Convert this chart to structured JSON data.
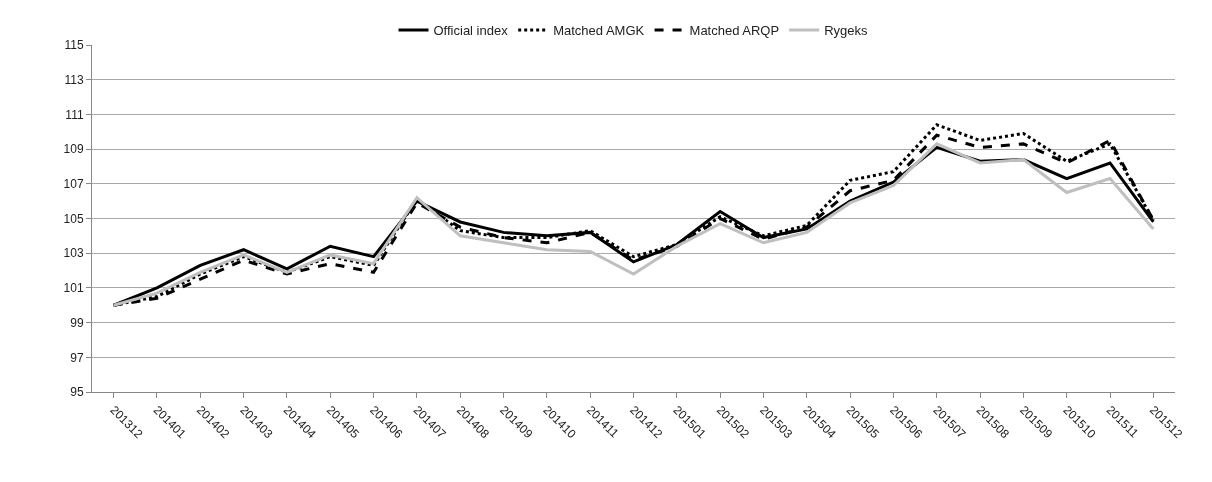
{
  "chart_data": {
    "type": "line",
    "categories": [
      "201312",
      "201401",
      "201402",
      "201403",
      "201404",
      "201405",
      "201406",
      "201407",
      "201408",
      "201409",
      "201410",
      "201411",
      "201412",
      "201501",
      "201502",
      "201503",
      "201504",
      "201505",
      "201506",
      "201507",
      "201508",
      "201509",
      "201510",
      "201511",
      "201512"
    ],
    "series": [
      {
        "name": "Official index",
        "color": "#000000",
        "line_style": "solid",
        "values": [
          100,
          101.0,
          102.3,
          103.2,
          102.1,
          103.4,
          102.8,
          106.0,
          104.8,
          104.2,
          104.0,
          104.2,
          102.5,
          103.5,
          105.4,
          103.9,
          104.4,
          106.0,
          107.1,
          109.1,
          108.3,
          108.4,
          107.3,
          108.2,
          104.8
        ]
      },
      {
        "name": "Matched AMGK",
        "color": "#000000",
        "line_style": "dotted",
        "values": [
          100,
          100.5,
          101.8,
          102.8,
          101.9,
          102.8,
          102.3,
          106.1,
          104.3,
          103.9,
          103.9,
          104.3,
          102.8,
          103.5,
          105.1,
          104.0,
          104.6,
          107.2,
          107.7,
          110.4,
          109.5,
          109.9,
          108.3,
          109.3,
          104.9
        ]
      },
      {
        "name": "Matched ARQP",
        "color": "#000000",
        "line_style": "dashed",
        "values": [
          100,
          100.4,
          101.5,
          102.6,
          101.8,
          102.4,
          101.9,
          105.9,
          104.5,
          103.9,
          103.6,
          104.2,
          102.6,
          103.4,
          105.0,
          103.8,
          104.5,
          106.6,
          107.2,
          109.8,
          109.1,
          109.3,
          108.2,
          109.5,
          104.9
        ]
      },
      {
        "name": "Rygeks",
        "color": "#bfbfbf",
        "line_style": "solid",
        "values": [
          100,
          100.7,
          101.9,
          102.9,
          101.9,
          102.9,
          102.4,
          106.2,
          104.0,
          103.6,
          103.2,
          103.1,
          101.8,
          103.4,
          104.7,
          103.6,
          104.2,
          105.9,
          106.9,
          109.3,
          108.2,
          108.4,
          106.5,
          107.3,
          104.4
        ]
      }
    ],
    "ylim": [
      95,
      115
    ],
    "yticks": [
      95,
      97,
      99,
      101,
      103,
      105,
      107,
      109,
      111,
      113,
      115
    ],
    "grid": "y",
    "legend": "top",
    "marker": "none"
  }
}
